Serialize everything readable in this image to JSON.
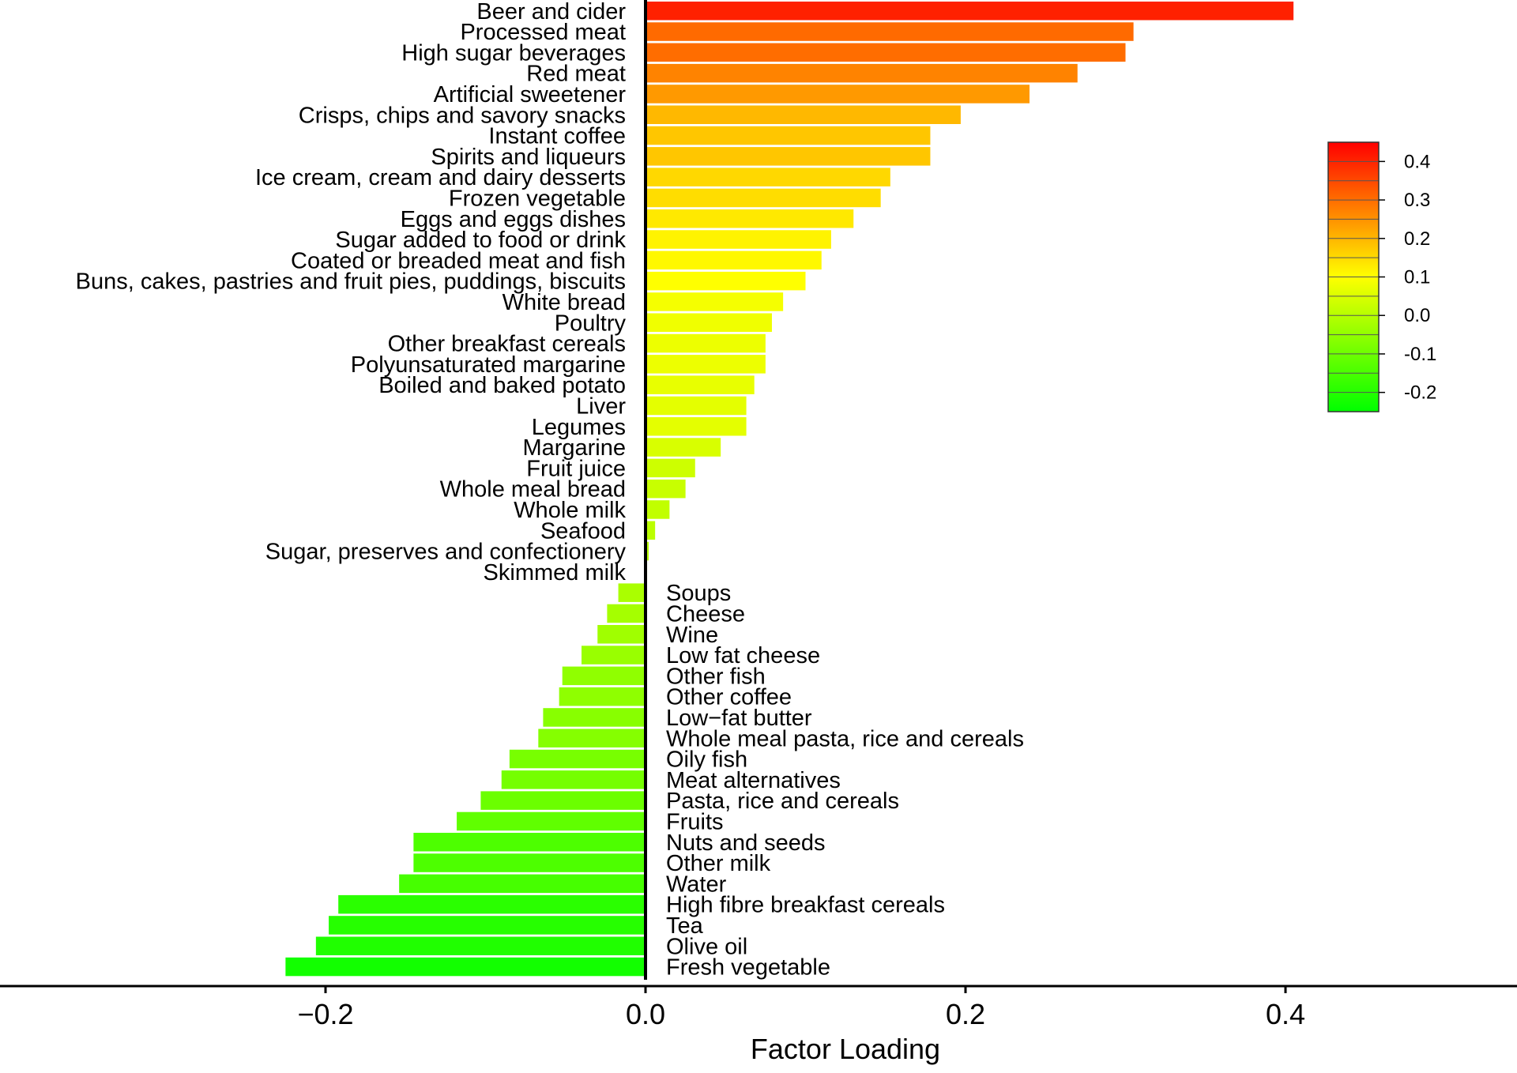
{
  "chart_data": {
    "type": "bar",
    "orientation": "horizontal",
    "xlabel": "Factor Loading",
    "xlim": [
      -0.325,
      0.435
    ],
    "x_ticks": [
      -0.2,
      0.0,
      0.2,
      0.4
    ],
    "x_tick_labels": [
      "−0.2",
      "0.0",
      "0.2",
      "0.4"
    ],
    "grid": false,
    "legend": "colorbar, upper right",
    "color_scale": {
      "low": "#00ff00",
      "mid": "#ffff00",
      "high": "#ff0000",
      "min": -0.25,
      "max": 0.45
    },
    "colorbar_ticks": [
      0.4,
      0.3,
      0.2,
      0.1,
      0.0,
      -0.1,
      -0.2
    ],
    "colorbar_tick_labels": [
      "0.4",
      "0.3",
      "0.2",
      "0.1",
      "0.0",
      "-0.1",
      "-0.2"
    ],
    "categories": [
      "Beer and cider",
      "Processed meat",
      "High sugar beverages",
      "Red meat",
      "Artificial sweetener",
      "Crisps, chips and savory snacks",
      "Instant coffee",
      "Spirits and liqueurs",
      "Ice cream, cream and dairy desserts",
      "Frozen vegetable",
      "Eggs and eggs dishes",
      "Sugar added to food or drink",
      "Coated or breaded meat and fish",
      "Buns, cakes, pastries and fruit pies, puddings, biscuits",
      "White bread",
      "Poultry",
      "Other breakfast cereals",
      "Polyunsaturated margarine",
      "Boiled and baked potato",
      "Liver",
      "Legumes",
      "Margarine",
      "Fruit juice",
      "Whole meal bread",
      "Whole milk",
      "Seafood",
      "Sugar, preserves and confectionery",
      "Skimmed milk",
      "Soups",
      "Cheese",
      "Wine",
      "Low fat cheese",
      "Other fish",
      "Other coffee",
      "Low−fat butter",
      "Whole meal pasta, rice and cereals",
      "Oily fish",
      "Meat alternatives",
      "Pasta, rice and cereals",
      "Fruits",
      "Nuts and seeds",
      "Other milk",
      "Water",
      "High fibre breakfast cereals",
      "Tea",
      "Olive oil",
      "Fresh vegetable"
    ],
    "values": [
      0.405,
      0.305,
      0.3,
      0.27,
      0.24,
      0.197,
      0.178,
      0.178,
      0.153,
      0.147,
      0.13,
      0.116,
      0.11,
      0.1,
      0.086,
      0.079,
      0.075,
      0.075,
      0.068,
      0.063,
      0.063,
      0.047,
      0.031,
      0.025,
      0.015,
      0.006,
      0.002,
      0.001,
      -0.017,
      -0.024,
      -0.03,
      -0.04,
      -0.052,
      -0.054,
      -0.064,
      -0.067,
      -0.085,
      -0.09,
      -0.103,
      -0.118,
      -0.145,
      -0.145,
      -0.154,
      -0.192,
      -0.198,
      -0.206,
      -0.225
    ]
  }
}
